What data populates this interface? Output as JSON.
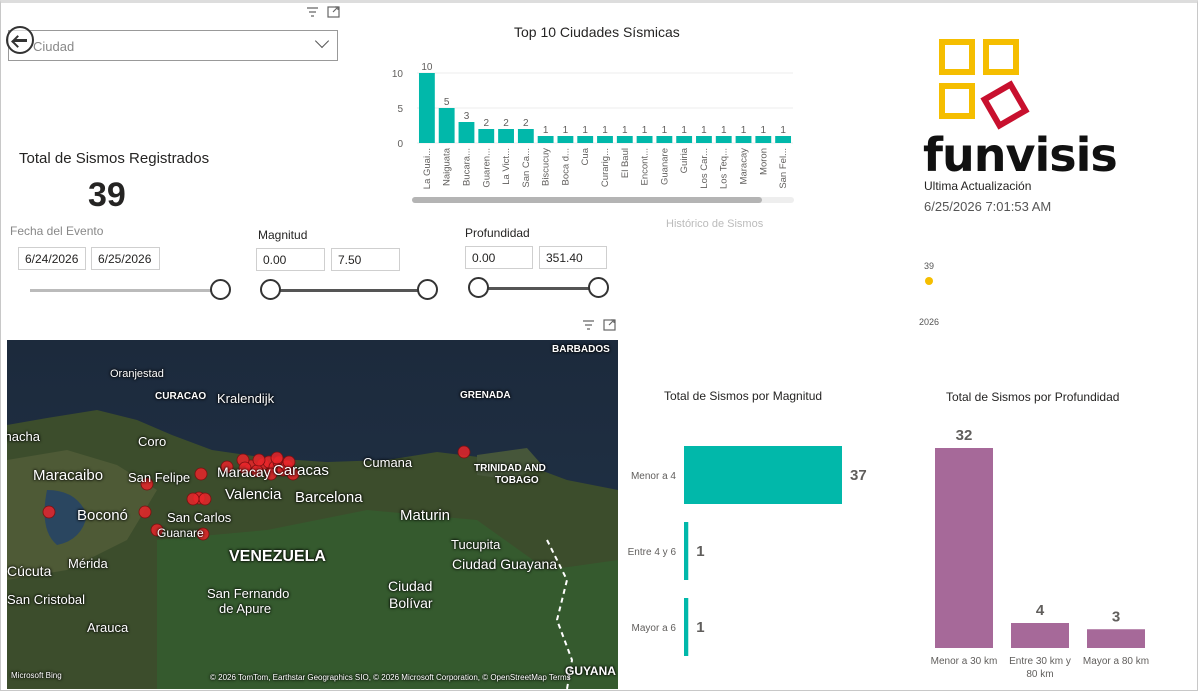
{
  "header": {
    "back_label": "Volver",
    "city_dropdown_placeholder": "Ciudad"
  },
  "kpi": {
    "label": "Total de Sismos Registrados",
    "value": "39"
  },
  "filters": {
    "date": {
      "title": "Fecha del Evento",
      "from": "6/24/2026",
      "to": "6/25/2026"
    },
    "magnitude": {
      "title": "Magnitud",
      "from": "0.00",
      "to": "7.50"
    },
    "depth": {
      "title": "Profundidad",
      "from": "0.00",
      "to": "351.40"
    }
  },
  "top_cities": {
    "title": "Top 10 Ciudades Sísmicas"
  },
  "history": {
    "title": "Histórico de Sismos",
    "point_label": "39",
    "year_label": "2026"
  },
  "branding": {
    "logo_text": "funvisis",
    "update_label": "Ultima Actualización",
    "update_value": "6/25/2026 7:01:53 AM"
  },
  "magnitude_chart": {
    "title": "Total de Sismos por Magnitud"
  },
  "depth_chart": {
    "title": "Total de Sismos por Profundidad"
  },
  "map": {
    "labels": [
      "BARBADOS",
      "Oranjestad",
      "CURACAO",
      "Kralendijk",
      "GRENADA",
      "Riohacha",
      "Coro",
      "Maracaibo",
      "San Felipe",
      "Maracay",
      "Caracas",
      "Cumana",
      "TRINIDAD AND",
      "TOBAGO",
      "Valencia",
      "Barcelona",
      "Boconó",
      "San Carlos",
      "Guanare",
      "Maturin",
      "VENEZUELA",
      "Tucupita",
      "Ciudad Guayana",
      "Cúcuta",
      "Mérida",
      "San Cristobal",
      "San Fernando",
      "de Apure",
      "Ciudad",
      "Bolívar",
      "Arauca",
      "GUYANA"
    ],
    "attribution": "© 2026 TomTom, Earthstar Geographics SIO, © 2026 Microsoft Corporation, © OpenStreetMap  Terms",
    "provider": "Microsoft Bing"
  },
  "colors": {
    "teal": "#01B8AA",
    "purple": "#A66999",
    "brand_yellow": "#F5BE00",
    "brand_red": "#C8102E",
    "quake_dot": "#E8262A"
  },
  "chart_data": [
    {
      "type": "bar",
      "title": "Top 10 Ciudades Sísmicas",
      "categories": [
        "La Guai...",
        "Naiguata",
        "Bucara...",
        "Guaren...",
        "La Vict...",
        "San Ca...",
        "Biscucuy",
        "Boca d...",
        "Cua",
        "Curarig...",
        "El Baul",
        "Encont...",
        "Guanare",
        "Guiria",
        "Los Car...",
        "Los Teq...",
        "Maracay",
        "Moron",
        "San Fel..."
      ],
      "values": [
        10,
        5,
        3,
        2,
        2,
        2,
        1,
        1,
        1,
        1,
        1,
        1,
        1,
        1,
        1,
        1,
        1,
        1,
        1
      ],
      "yticks": [
        0,
        5,
        10
      ],
      "ylim": [
        0,
        11
      ],
      "color": "#01B8AA"
    },
    {
      "type": "bar",
      "orientation": "horizontal",
      "title": "Total de Sismos por Magnitud",
      "categories": [
        "Menor a 4",
        "Entre 4 y 6",
        "Mayor a 6"
      ],
      "values": [
        37,
        1,
        1
      ],
      "color": "#01B8AA"
    },
    {
      "type": "bar",
      "title": "Total de Sismos por Profundidad",
      "categories": [
        "Menor a 30 km",
        "Entre 30 km y 80 km",
        "Mayor a 80 km"
      ],
      "values": [
        32,
        4,
        3
      ],
      "color": "#A66999"
    },
    {
      "type": "scatter",
      "title": "Histórico de Sismos",
      "x": [
        "2026"
      ],
      "y": [
        39
      ],
      "color": "#F5BE00"
    }
  ]
}
